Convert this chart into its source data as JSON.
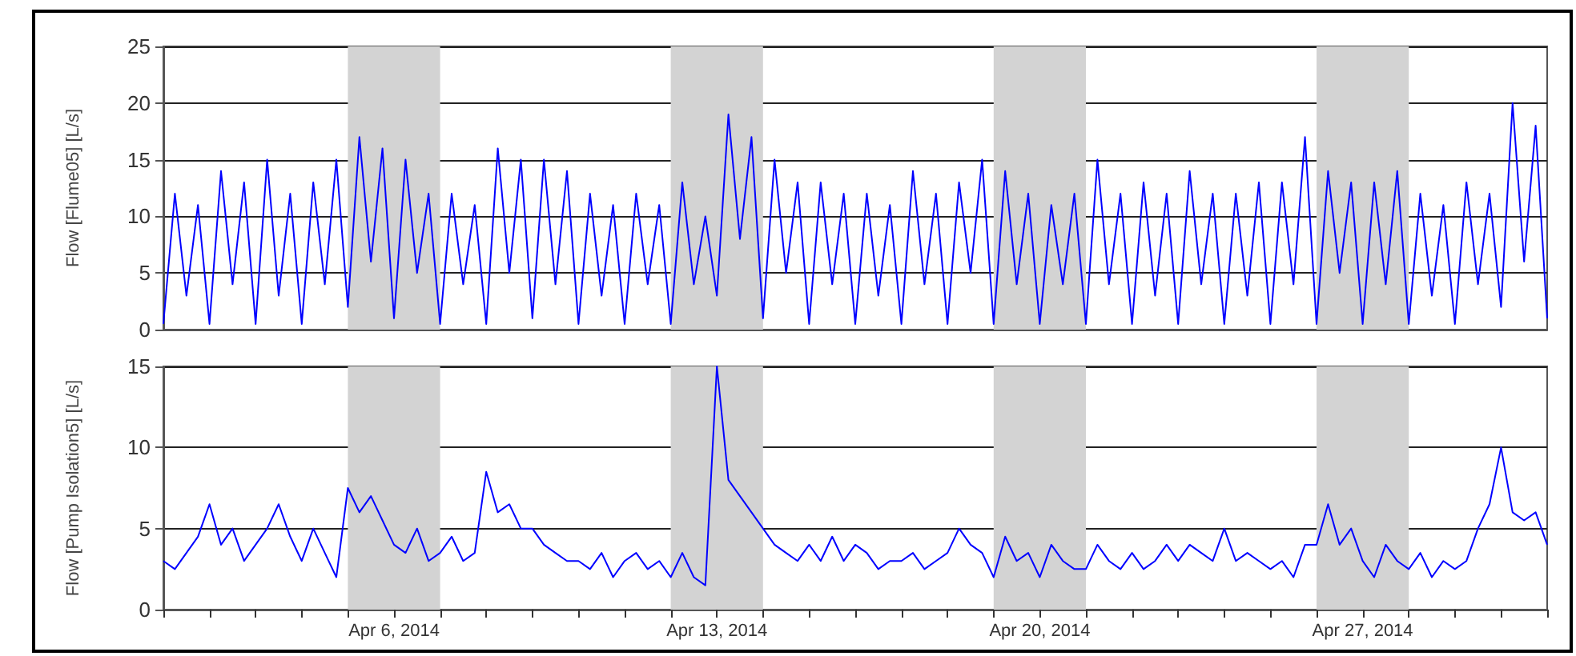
{
  "chart_data": [
    {
      "type": "line",
      "ylabel": "Flow [Flume05] [L/s]",
      "xlim": [
        "2014-04-01",
        "2014-05-01"
      ],
      "ylim": [
        0,
        25
      ],
      "yticks": [
        0,
        5,
        10,
        15,
        20,
        25
      ],
      "xticks": [
        {
          "value": "2014-04-06",
          "label": null
        },
        {
          "value": "2014-04-13",
          "label": null
        },
        {
          "value": "2014-04-20",
          "label": null
        },
        {
          "value": "2014-04-27",
          "label": null
        }
      ],
      "tick_labels": "y",
      "grid": true,
      "x": [
        "2014-04-01T00:00",
        "2014-04-01T06:00",
        "2014-04-01T12:00",
        "2014-04-01T18:00",
        "2014-04-02T00:00",
        "2014-04-02T06:00",
        "2014-04-02T12:00",
        "2014-04-02T18:00",
        "2014-04-03T00:00",
        "2014-04-03T06:00",
        "2014-04-03T12:00",
        "2014-04-03T18:00",
        "2014-04-04T00:00",
        "2014-04-04T06:00",
        "2014-04-04T12:00",
        "2014-04-04T18:00",
        "2014-04-05T00:00",
        "2014-04-05T06:00",
        "2014-04-05T12:00",
        "2014-04-05T18:00",
        "2014-04-06T00:00",
        "2014-04-06T06:00",
        "2014-04-06T12:00",
        "2014-04-06T18:00",
        "2014-04-07T00:00",
        "2014-04-07T06:00",
        "2014-04-07T12:00",
        "2014-04-07T18:00",
        "2014-04-08T00:00",
        "2014-04-08T06:00",
        "2014-04-08T12:00",
        "2014-04-08T18:00",
        "2014-04-09T00:00",
        "2014-04-09T06:00",
        "2014-04-09T12:00",
        "2014-04-09T18:00",
        "2014-04-10T00:00",
        "2014-04-10T06:00",
        "2014-04-10T12:00",
        "2014-04-10T18:00",
        "2014-04-11T00:00",
        "2014-04-11T06:00",
        "2014-04-11T12:00",
        "2014-04-11T18:00",
        "2014-04-12T00:00",
        "2014-04-12T06:00",
        "2014-04-12T12:00",
        "2014-04-12T18:00",
        "2014-04-13T00:00",
        "2014-04-13T06:00",
        "2014-04-13T12:00",
        "2014-04-13T18:00",
        "2014-04-14T00:00",
        "2014-04-14T06:00",
        "2014-04-14T12:00",
        "2014-04-14T18:00",
        "2014-04-15T00:00",
        "2014-04-15T06:00",
        "2014-04-15T12:00",
        "2014-04-15T18:00",
        "2014-04-16T00:00",
        "2014-04-16T06:00",
        "2014-04-16T12:00",
        "2014-04-16T18:00",
        "2014-04-17T00:00",
        "2014-04-17T06:00",
        "2014-04-17T12:00",
        "2014-04-17T18:00",
        "2014-04-18T00:00",
        "2014-04-18T06:00",
        "2014-04-18T12:00",
        "2014-04-18T18:00",
        "2014-04-19T00:00",
        "2014-04-19T06:00",
        "2014-04-19T12:00",
        "2014-04-19T18:00",
        "2014-04-20T00:00",
        "2014-04-20T06:00",
        "2014-04-20T12:00",
        "2014-04-20T18:00",
        "2014-04-21T00:00",
        "2014-04-21T06:00",
        "2014-04-21T12:00",
        "2014-04-21T18:00",
        "2014-04-22T00:00",
        "2014-04-22T06:00",
        "2014-04-22T12:00",
        "2014-04-22T18:00",
        "2014-04-23T00:00",
        "2014-04-23T06:00",
        "2014-04-23T12:00",
        "2014-04-23T18:00",
        "2014-04-24T00:00",
        "2014-04-24T06:00",
        "2014-04-24T12:00",
        "2014-04-24T18:00",
        "2014-04-25T00:00",
        "2014-04-25T06:00",
        "2014-04-25T12:00",
        "2014-04-25T18:00",
        "2014-04-26T00:00",
        "2014-04-26T06:00",
        "2014-04-26T12:00",
        "2014-04-26T18:00",
        "2014-04-27T00:00",
        "2014-04-27T06:00",
        "2014-04-27T12:00",
        "2014-04-27T18:00",
        "2014-04-28T00:00",
        "2014-04-28T06:00",
        "2014-04-28T12:00",
        "2014-04-28T18:00",
        "2014-04-29T00:00",
        "2014-04-29T06:00",
        "2014-04-29T12:00",
        "2014-04-29T18:00",
        "2014-04-30T00:00",
        "2014-04-30T06:00",
        "2014-04-30T12:00",
        "2014-04-30T18:00",
        "2014-05-01T00:00"
      ],
      "bands": [
        {
          "axis": "x",
          "from": "2014-04-05",
          "to": "2014-04-07",
          "color": "#d3d3d3"
        },
        {
          "axis": "x",
          "from": "2014-04-12",
          "to": "2014-04-14",
          "color": "#d3d3d3"
        },
        {
          "axis": "x",
          "from": "2014-04-19",
          "to": "2014-04-21",
          "color": "#d3d3d3"
        },
        {
          "axis": "x",
          "from": "2014-04-26",
          "to": "2014-04-28",
          "color": "#d3d3d3"
        }
      ],
      "series": [
        {
          "color": "#0000ff",
          "values": [
            0.5,
            12,
            3,
            11,
            0.5,
            14,
            4,
            13,
            0.5,
            15,
            3,
            12,
            0.5,
            13,
            4,
            15,
            2,
            17,
            6,
            16,
            1,
            15,
            5,
            12,
            0.5,
            12,
            4,
            11,
            0.5,
            16,
            5,
            15,
            1,
            15,
            4,
            14,
            0.5,
            12,
            3,
            11,
            0.5,
            12,
            4,
            11,
            0.5,
            13,
            4,
            10,
            3,
            19,
            8,
            17,
            1,
            15,
            5,
            13,
            0.5,
            13,
            4,
            12,
            0.5,
            12,
            3,
            11,
            0.5,
            14,
            4,
            12,
            0.5,
            13,
            5,
            15,
            0.5,
            14,
            4,
            12,
            0.5,
            11,
            4,
            12,
            0.5,
            15,
            4,
            12,
            0.5,
            13,
            3,
            12,
            0.5,
            14,
            4,
            12,
            0.5,
            12,
            3,
            13,
            0.5,
            13,
            4,
            17,
            0.5,
            14,
            5,
            13,
            0.5,
            13,
            4,
            14,
            0.5,
            12,
            3,
            11,
            0.5,
            13,
            4,
            12,
            2,
            20,
            6,
            18,
            1
          ]
        }
      ]
    },
    {
      "type": "line",
      "ylabel": "Flow [Pump Isolation5] [L/s]",
      "xlim": [
        "2014-04-01",
        "2014-05-01"
      ],
      "ylim": [
        0,
        15
      ],
      "yticks": [
        0,
        5,
        10,
        15
      ],
      "xticks": [
        {
          "value": "2014-04-01",
          "label": null
        },
        {
          "value": "2014-04-02",
          "label": null
        },
        {
          "value": "2014-04-03",
          "label": null
        },
        {
          "value": "2014-04-04",
          "label": null
        },
        {
          "value": "2014-04-05",
          "label": null
        },
        {
          "value": "2014-04-06",
          "label": "Apr 6, 2014"
        },
        {
          "value": "2014-04-07",
          "label": null
        },
        {
          "value": "2014-04-08",
          "label": null
        },
        {
          "value": "2014-04-09",
          "label": null
        },
        {
          "value": "2014-04-10",
          "label": null
        },
        {
          "value": "2014-04-11",
          "label": null
        },
        {
          "value": "2014-04-12",
          "label": null
        },
        {
          "value": "2014-04-13",
          "label": "Apr 13, 2014"
        },
        {
          "value": "2014-04-14",
          "label": null
        },
        {
          "value": "2014-04-15",
          "label": null
        },
        {
          "value": "2014-04-16",
          "label": null
        },
        {
          "value": "2014-04-17",
          "label": null
        },
        {
          "value": "2014-04-18",
          "label": null
        },
        {
          "value": "2014-04-19",
          "label": null
        },
        {
          "value": "2014-04-20",
          "label": "Apr 20, 2014"
        },
        {
          "value": "2014-04-21",
          "label": null
        },
        {
          "value": "2014-04-22",
          "label": null
        },
        {
          "value": "2014-04-23",
          "label": null
        },
        {
          "value": "2014-04-24",
          "label": null
        },
        {
          "value": "2014-04-25",
          "label": null
        },
        {
          "value": "2014-04-26",
          "label": null
        },
        {
          "value": "2014-04-27",
          "label": "Apr 27, 2014"
        },
        {
          "value": "2014-04-28",
          "label": null
        },
        {
          "value": "2014-04-29",
          "label": null
        },
        {
          "value": "2014-04-30",
          "label": null
        },
        {
          "value": "2014-05-01",
          "label": null
        }
      ],
      "grid": true,
      "x": [
        "2014-04-01T00:00",
        "2014-04-01T06:00",
        "2014-04-01T12:00",
        "2014-04-01T18:00",
        "2014-04-02T00:00",
        "2014-04-02T06:00",
        "2014-04-02T12:00",
        "2014-04-02T18:00",
        "2014-04-03T00:00",
        "2014-04-03T06:00",
        "2014-04-03T12:00",
        "2014-04-03T18:00",
        "2014-04-04T00:00",
        "2014-04-04T06:00",
        "2014-04-04T12:00",
        "2014-04-04T18:00",
        "2014-04-05T00:00",
        "2014-04-05T06:00",
        "2014-04-05T12:00",
        "2014-04-05T18:00",
        "2014-04-06T00:00",
        "2014-04-06T06:00",
        "2014-04-06T12:00",
        "2014-04-06T18:00",
        "2014-04-07T00:00",
        "2014-04-07T06:00",
        "2014-04-07T12:00",
        "2014-04-07T18:00",
        "2014-04-08T00:00",
        "2014-04-08T06:00",
        "2014-04-08T12:00",
        "2014-04-08T18:00",
        "2014-04-09T00:00",
        "2014-04-09T06:00",
        "2014-04-09T12:00",
        "2014-04-09T18:00",
        "2014-04-10T00:00",
        "2014-04-10T06:00",
        "2014-04-10T12:00",
        "2014-04-10T18:00",
        "2014-04-11T00:00",
        "2014-04-11T06:00",
        "2014-04-11T12:00",
        "2014-04-11T18:00",
        "2014-04-12T00:00",
        "2014-04-12T06:00",
        "2014-04-12T12:00",
        "2014-04-12T18:00",
        "2014-04-13T00:00",
        "2014-04-13T06:00",
        "2014-04-13T12:00",
        "2014-04-13T18:00",
        "2014-04-14T00:00",
        "2014-04-14T06:00",
        "2014-04-14T12:00",
        "2014-04-14T18:00",
        "2014-04-15T00:00",
        "2014-04-15T06:00",
        "2014-04-15T12:00",
        "2014-04-15T18:00",
        "2014-04-16T00:00",
        "2014-04-16T06:00",
        "2014-04-16T12:00",
        "2014-04-16T18:00",
        "2014-04-17T00:00",
        "2014-04-17T06:00",
        "2014-04-17T12:00",
        "2014-04-17T18:00",
        "2014-04-18T00:00",
        "2014-04-18T06:00",
        "2014-04-18T12:00",
        "2014-04-18T18:00",
        "2014-04-19T00:00",
        "2014-04-19T06:00",
        "2014-04-19T12:00",
        "2014-04-19T18:00",
        "2014-04-20T00:00",
        "2014-04-20T06:00",
        "2014-04-20T12:00",
        "2014-04-20T18:00",
        "2014-04-21T00:00",
        "2014-04-21T06:00",
        "2014-04-21T12:00",
        "2014-04-21T18:00",
        "2014-04-22T00:00",
        "2014-04-22T06:00",
        "2014-04-22T12:00",
        "2014-04-22T18:00",
        "2014-04-23T00:00",
        "2014-04-23T06:00",
        "2014-04-23T12:00",
        "2014-04-23T18:00",
        "2014-04-24T00:00",
        "2014-04-24T06:00",
        "2014-04-24T12:00",
        "2014-04-24T18:00",
        "2014-04-25T00:00",
        "2014-04-25T06:00",
        "2014-04-25T12:00",
        "2014-04-25T18:00",
        "2014-04-26T00:00",
        "2014-04-26T06:00",
        "2014-04-26T12:00",
        "2014-04-26T18:00",
        "2014-04-27T00:00",
        "2014-04-27T06:00",
        "2014-04-27T12:00",
        "2014-04-27T18:00",
        "2014-04-28T00:00",
        "2014-04-28T06:00",
        "2014-04-28T12:00",
        "2014-04-28T18:00",
        "2014-04-29T00:00",
        "2014-04-29T06:00",
        "2014-04-29T12:00",
        "2014-04-29T18:00",
        "2014-04-30T00:00",
        "2014-04-30T06:00",
        "2014-04-30T12:00",
        "2014-04-30T18:00",
        "2014-05-01T00:00"
      ],
      "bands": [
        {
          "axis": "x",
          "from": "2014-04-05",
          "to": "2014-04-07",
          "color": "#d3d3d3"
        },
        {
          "axis": "x",
          "from": "2014-04-12",
          "to": "2014-04-14",
          "color": "#d3d3d3"
        },
        {
          "axis": "x",
          "from": "2014-04-19",
          "to": "2014-04-21",
          "color": "#d3d3d3"
        },
        {
          "axis": "x",
          "from": "2014-04-26",
          "to": "2014-04-28",
          "color": "#d3d3d3"
        }
      ],
      "series": [
        {
          "color": "#0000ff",
          "values": [
            3,
            2.5,
            3.5,
            4.5,
            6.5,
            4,
            5,
            3,
            4,
            5,
            6.5,
            4.5,
            3,
            5,
            3.5,
            2,
            7.5,
            6,
            7,
            5.5,
            4,
            3.5,
            5,
            3,
            3.5,
            4.5,
            3,
            3.5,
            8.5,
            6,
            6.5,
            5,
            5,
            4,
            3.5,
            3,
            3,
            2.5,
            3.5,
            2,
            3,
            3.5,
            2.5,
            3,
            2,
            3.5,
            2,
            1.5,
            15,
            8,
            7,
            6,
            5,
            4,
            3.5,
            3,
            4,
            3,
            4.5,
            3,
            4,
            3.5,
            2.5,
            3,
            3,
            3.5,
            2.5,
            3,
            3.5,
            5,
            4,
            3.5,
            2,
            4.5,
            3,
            3.5,
            2,
            4,
            3,
            2.5,
            2.5,
            4,
            3,
            2.5,
            3.5,
            2.5,
            3,
            4,
            3,
            4,
            3.5,
            3,
            5,
            3,
            3.5,
            3,
            2.5,
            3,
            2,
            4,
            4,
            6.5,
            4,
            5,
            3,
            2,
            4,
            3,
            2.5,
            3.5,
            2,
            3,
            2.5,
            3,
            5,
            6.5,
            10,
            6,
            5.5,
            6,
            4
          ]
        }
      ]
    }
  ]
}
